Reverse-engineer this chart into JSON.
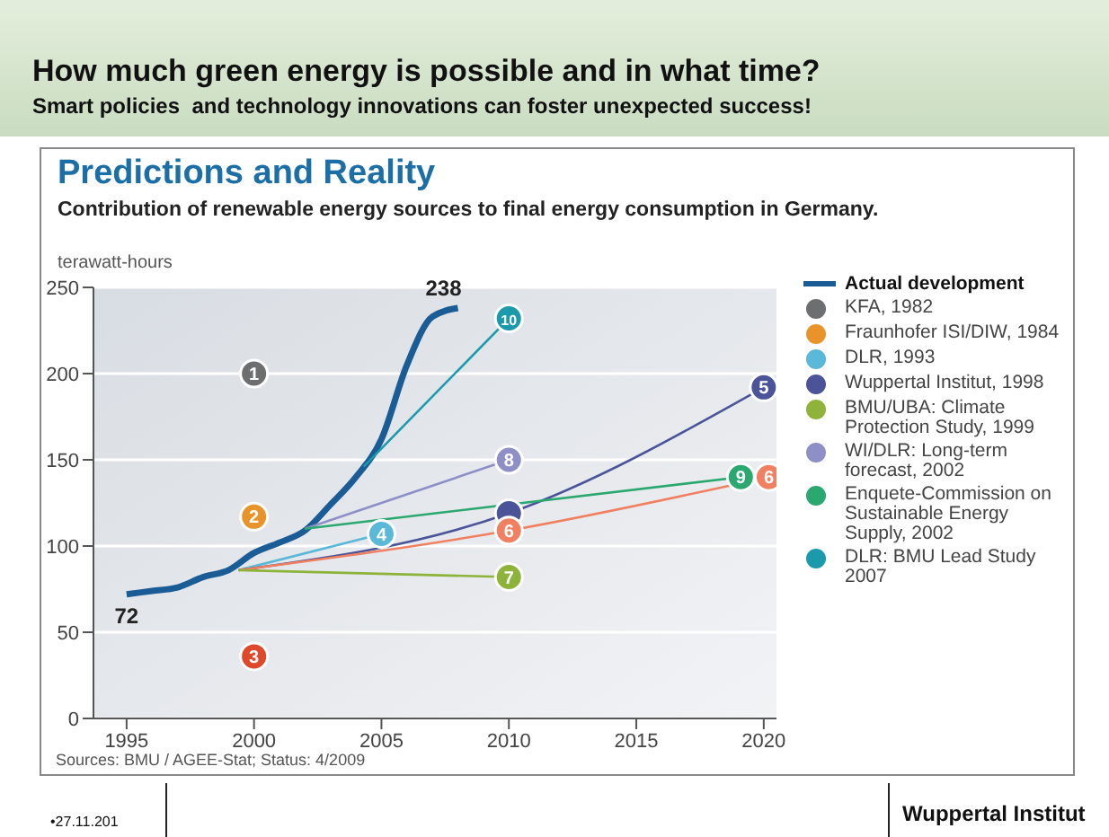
{
  "chart_data": {
    "type": "line",
    "title": "How much green energy is possible and in what time?",
    "subtitle": "Smart policies  and technology innovations can foster unexpected success!",
    "annotations": [
      "Predictions and Reality",
      "Contribution of renewable energy sources to final energy consumption in Germany.",
      "Sources: BMU / AGEE-Stat; Status: 4/2009",
      "•27.11.201",
      "Wuppertal Institut",
      {
        "text": "1",
        "x": 2000,
        "y": 200
      },
      {
        "text": "2",
        "x": 2000,
        "y": 117
      },
      {
        "text": "3",
        "x": 2000,
        "y": 36
      },
      {
        "text": "4",
        "x": 2005,
        "y": 107
      },
      {
        "text": "5",
        "x": 2020,
        "y": 192
      },
      {
        "text": "6",
        "x": 2010,
        "y": 109
      },
      {
        "text": "6",
        "x": 2020.2,
        "y": 140
      },
      {
        "text": "7",
        "x": 2010,
        "y": 82
      },
      {
        "text": "8",
        "x": 2010,
        "y": 150
      },
      {
        "text": "9",
        "x": 2019.1,
        "y": 140
      },
      {
        "text": "10",
        "x": 2010,
        "y": 232
      }
    ],
    "ylabel": "terawatt-hours",
    "xlim": [
      1993.7,
      2020.5
    ],
    "xticks": [
      1995,
      2000,
      2005,
      2010,
      2015,
      2020
    ],
    "ylim": [
      0,
      250
    ],
    "yticks": [
      0,
      50,
      100,
      150,
      200,
      250
    ],
    "grid": "y",
    "legend": "right",
    "marker": "circle",
    "series": [
      {
        "name": "Actual development",
        "color": "#1a5c96",
        "marker": "none",
        "x": [
          1995,
          1996,
          1997,
          1998,
          1999,
          2000,
          2001,
          2002,
          2003,
          2004,
          2005,
          2006,
          2007,
          2008
        ],
        "values": [
          72,
          74,
          76,
          82,
          86,
          96,
          102,
          109,
          124,
          140,
          162,
          205,
          233,
          238
        ],
        "value_labels": [
          "72",
          null,
          null,
          null,
          null,
          null,
          null,
          null,
          null,
          null,
          null,
          null,
          null,
          "238"
        ]
      },
      {
        "name": "KFA, 1982",
        "type": "scatter",
        "color": "#6d6e70",
        "x": [
          2000
        ],
        "values": [
          200
        ]
      },
      {
        "name": "Fraunhofer ISI/DIW, 1984",
        "type": "scatter",
        "color": "#e8942a",
        "x": [
          2000
        ],
        "values": [
          117
        ]
      },
      {
        "type": "scatter",
        "color": "#e0482a",
        "x": [
          2000
        ],
        "values": [
          36
        ]
      },
      {
        "name": "DLR, 1993",
        "color": "#5ab8d8",
        "x": [
          1999.4,
          2005
        ],
        "values": [
          86,
          107
        ]
      },
      {
        "name": "Wuppertal Institut, 1998",
        "color": "#4b5499",
        "x": [
          1999.4,
          2010,
          2020
        ],
        "values": [
          86,
          119,
          192
        ]
      },
      {
        "color": "#f08060",
        "x": [
          1999.4,
          2010,
          2020.2
        ],
        "values": [
          86,
          109,
          140
        ]
      },
      {
        "name": "BMU/UBA: Climate Protection Study, 1999",
        "color": "#8db33a",
        "x": [
          1999.4,
          2010
        ],
        "values": [
          86,
          82
        ]
      },
      {
        "name": "WI/DLR: Long-term forecast, 2002",
        "color": "#8f8fc8",
        "x": [
          2002,
          2010
        ],
        "values": [
          110,
          150
        ]
      },
      {
        "name": "Enquete-Commission on Sustainable Energy Supply, 2002",
        "color": "#2aa870",
        "x": [
          2002,
          2019.1
        ],
        "values": [
          110,
          140
        ]
      },
      {
        "name": "DLR: BMU Lead Study 2007",
        "color": "#1a9aaa",
        "x": [
          2004.3,
          2010
        ],
        "values": [
          146,
          232
        ]
      }
    ]
  }
}
